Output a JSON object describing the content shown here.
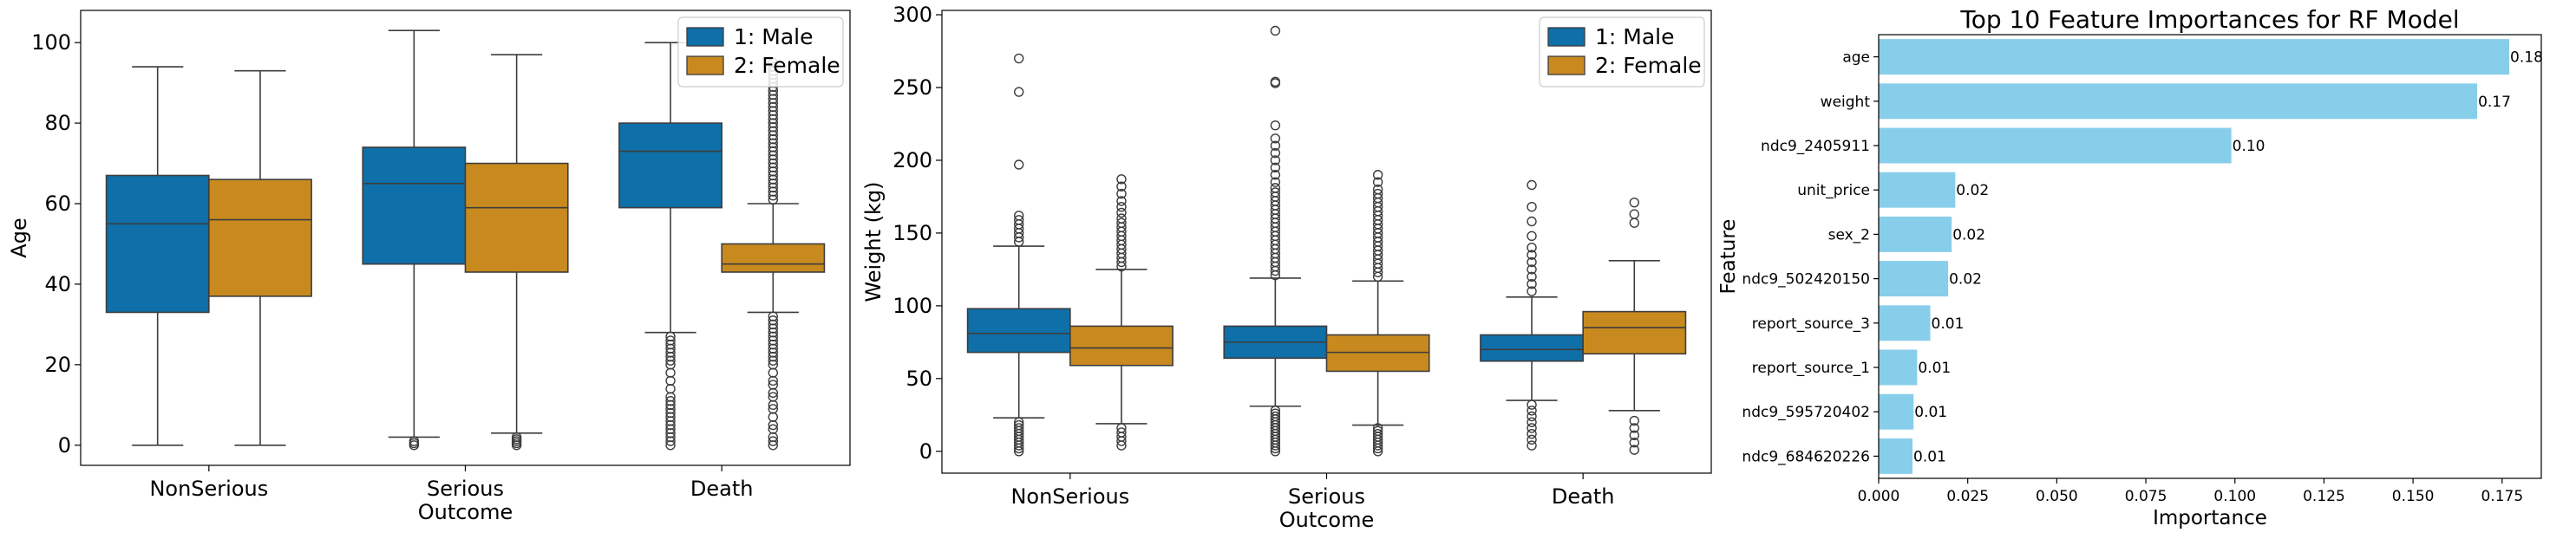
{
  "chart_data": [
    {
      "type": "box",
      "xlabel": "Outcome",
      "ylabel": "Age",
      "categories": [
        "NonSerious",
        "Serious",
        "Death"
      ],
      "ylim": [
        -5,
        108
      ],
      "yticks": [
        0,
        20,
        40,
        60,
        80,
        100
      ],
      "ytick_labels": [
        "0",
        "20",
        "40",
        "60",
        "80",
        "100"
      ],
      "legend": {
        "position": "top-right",
        "entries": [
          "1: Male",
          "2: Female"
        ]
      },
      "series": [
        {
          "name": "1: Male",
          "color": "#0f6fa8",
          "boxes": [
            {
              "whislo": 0,
              "q1": 33,
              "med": 55,
              "q3": 67,
              "whishi": 94,
              "fliers": []
            },
            {
              "whislo": 2,
              "q1": 45,
              "med": 65,
              "q3": 74,
              "whishi": 103,
              "fliers": [
                0,
                0.5,
                1
              ]
            },
            {
              "whislo": 28,
              "q1": 59,
              "med": 73,
              "q3": 80,
              "whishi": 100,
              "fliers": [
                0,
                1,
                2,
                3,
                4,
                5,
                6,
                7,
                8,
                9,
                10,
                11,
                12,
                14,
                16,
                18,
                20,
                21,
                22,
                23,
                24,
                25,
                26,
                27
              ]
            }
          ]
        },
        {
          "name": "2: Female",
          "color": "#c88a1f",
          "boxes": [
            {
              "whislo": 0,
              "q1": 37,
              "med": 56,
              "q3": 66,
              "whishi": 93,
              "fliers": []
            },
            {
              "whislo": 3,
              "q1": 43,
              "med": 59,
              "q3": 70,
              "whishi": 97,
              "fliers": [
                0,
                0.5,
                1,
                1.5,
                2
              ]
            },
            {
              "whislo": 33,
              "q1": 43,
              "med": 45,
              "q3": 50,
              "whishi": 60,
              "fliers": [
                0,
                1,
                2,
                4,
                5,
                7,
                9,
                10,
                12,
                13,
                15,
                16,
                18,
                20,
                21,
                22,
                23,
                24,
                25,
                26,
                27,
                28,
                29,
                30,
                31,
                32,
                61,
                62,
                63,
                64,
                65,
                66,
                67,
                68,
                69,
                70,
                71,
                72,
                73,
                74,
                75,
                76,
                77,
                78,
                79,
                80,
                81,
                82,
                83,
                84,
                85,
                86,
                87,
                88,
                89,
                90,
                91,
                92,
                93,
                94,
                95
              ]
            }
          ]
        }
      ]
    },
    {
      "type": "box",
      "xlabel": "Outcome",
      "ylabel": "Weight (kg)",
      "categories": [
        "NonSerious",
        "Serious",
        "Death"
      ],
      "ylim": [
        -15,
        303
      ],
      "yticks": [
        0,
        50,
        100,
        150,
        200,
        250,
        300
      ],
      "ytick_labels": [
        "0",
        "50",
        "100",
        "150",
        "200",
        "250",
        "300"
      ],
      "legend": {
        "position": "top-right",
        "entries": [
          "1: Male",
          "2: Female"
        ]
      },
      "series": [
        {
          "name": "1: Male",
          "color": "#0f6fa8",
          "boxes": [
            {
              "whislo": 23,
              "q1": 68,
              "med": 81,
              "q3": 98,
              "whishi": 141,
              "fliers": [
                0,
                2,
                4,
                6,
                8,
                10,
                12,
                14,
                16,
                18,
                20,
                144,
                147,
                150,
                153,
                156,
                159,
                162,
                197,
                247,
                270
              ]
            },
            {
              "whislo": 31,
              "q1": 64,
              "med": 75,
              "q3": 86,
              "whishi": 119,
              "fliers": [
                0,
                2,
                4,
                6,
                8,
                10,
                12,
                14,
                16,
                18,
                20,
                22,
                24,
                26,
                28,
                121,
                124,
                127,
                130,
                133,
                136,
                139,
                142,
                145,
                148,
                151,
                154,
                157,
                160,
                163,
                166,
                169,
                172,
                175,
                178,
                181,
                185,
                190,
                195,
                200,
                205,
                210,
                215,
                224,
                253,
                254,
                289
              ]
            },
            {
              "whislo": 35,
              "q1": 62,
              "med": 70,
              "q3": 80,
              "whishi": 106,
              "fliers": [
                4,
                8,
                12,
                16,
                20,
                24,
                28,
                32,
                110,
                115,
                120,
                125,
                130,
                135,
                140,
                148,
                158,
                168,
                183
              ]
            }
          ]
        },
        {
          "name": "2: Female",
          "color": "#c88a1f",
          "boxes": [
            {
              "whislo": 19,
              "q1": 59,
              "med": 71,
              "q3": 86,
              "whishi": 125,
              "fliers": [
                4,
                7,
                10,
                13,
                16,
                127,
                130,
                133,
                136,
                139,
                142,
                145,
                148,
                151,
                154,
                157,
                160,
                164,
                168,
                172,
                177,
                182,
                187
              ]
            },
            {
              "whislo": 18,
              "q1": 55,
              "med": 68,
              "q3": 80,
              "whishi": 117,
              "fliers": [
                0,
                2,
                4,
                6,
                8,
                10,
                12,
                14,
                16,
                120,
                123,
                126,
                129,
                132,
                135,
                138,
                141,
                144,
                147,
                150,
                153,
                156,
                159,
                162,
                165,
                168,
                171,
                174,
                177,
                180,
                185,
                190
              ]
            },
            {
              "whislo": 28,
              "q1": 67,
              "med": 85,
              "q3": 96,
              "whishi": 131,
              "fliers": [
                1,
                6,
                11,
                16,
                21,
                157,
                163,
                171
              ]
            }
          ]
        }
      ]
    },
    {
      "type": "bar",
      "orientation": "horizontal",
      "title": "Top 10 Feature Importances for RF Model",
      "xlabel": "Importance",
      "ylabel": "Feature",
      "color": "#87ceeb",
      "xlim": [
        0,
        0.186
      ],
      "xticks": [
        0,
        0.025,
        0.05,
        0.075,
        0.1,
        0.125,
        0.15,
        0.175
      ],
      "xtick_labels": [
        "0.000",
        "0.025",
        "0.050",
        "0.075",
        "0.100",
        "0.125",
        "0.150",
        "0.175"
      ],
      "categories": [
        "age",
        "weight",
        "ndc9_2405911",
        "unit_price",
        "sex_2",
        "ndc9_502420150",
        "report_source_3",
        "report_source_1",
        "ndc9_595720402",
        "ndc9_684620226"
      ],
      "values": [
        0.177,
        0.168,
        0.099,
        0.0215,
        0.0205,
        0.0195,
        0.0145,
        0.0108,
        0.0098,
        0.0095
      ],
      "value_labels": [
        "0.18",
        "0.17",
        "0.10",
        "0.02",
        "0.02",
        "0.02",
        "0.01",
        "0.01",
        "0.01",
        "0.01"
      ]
    }
  ]
}
